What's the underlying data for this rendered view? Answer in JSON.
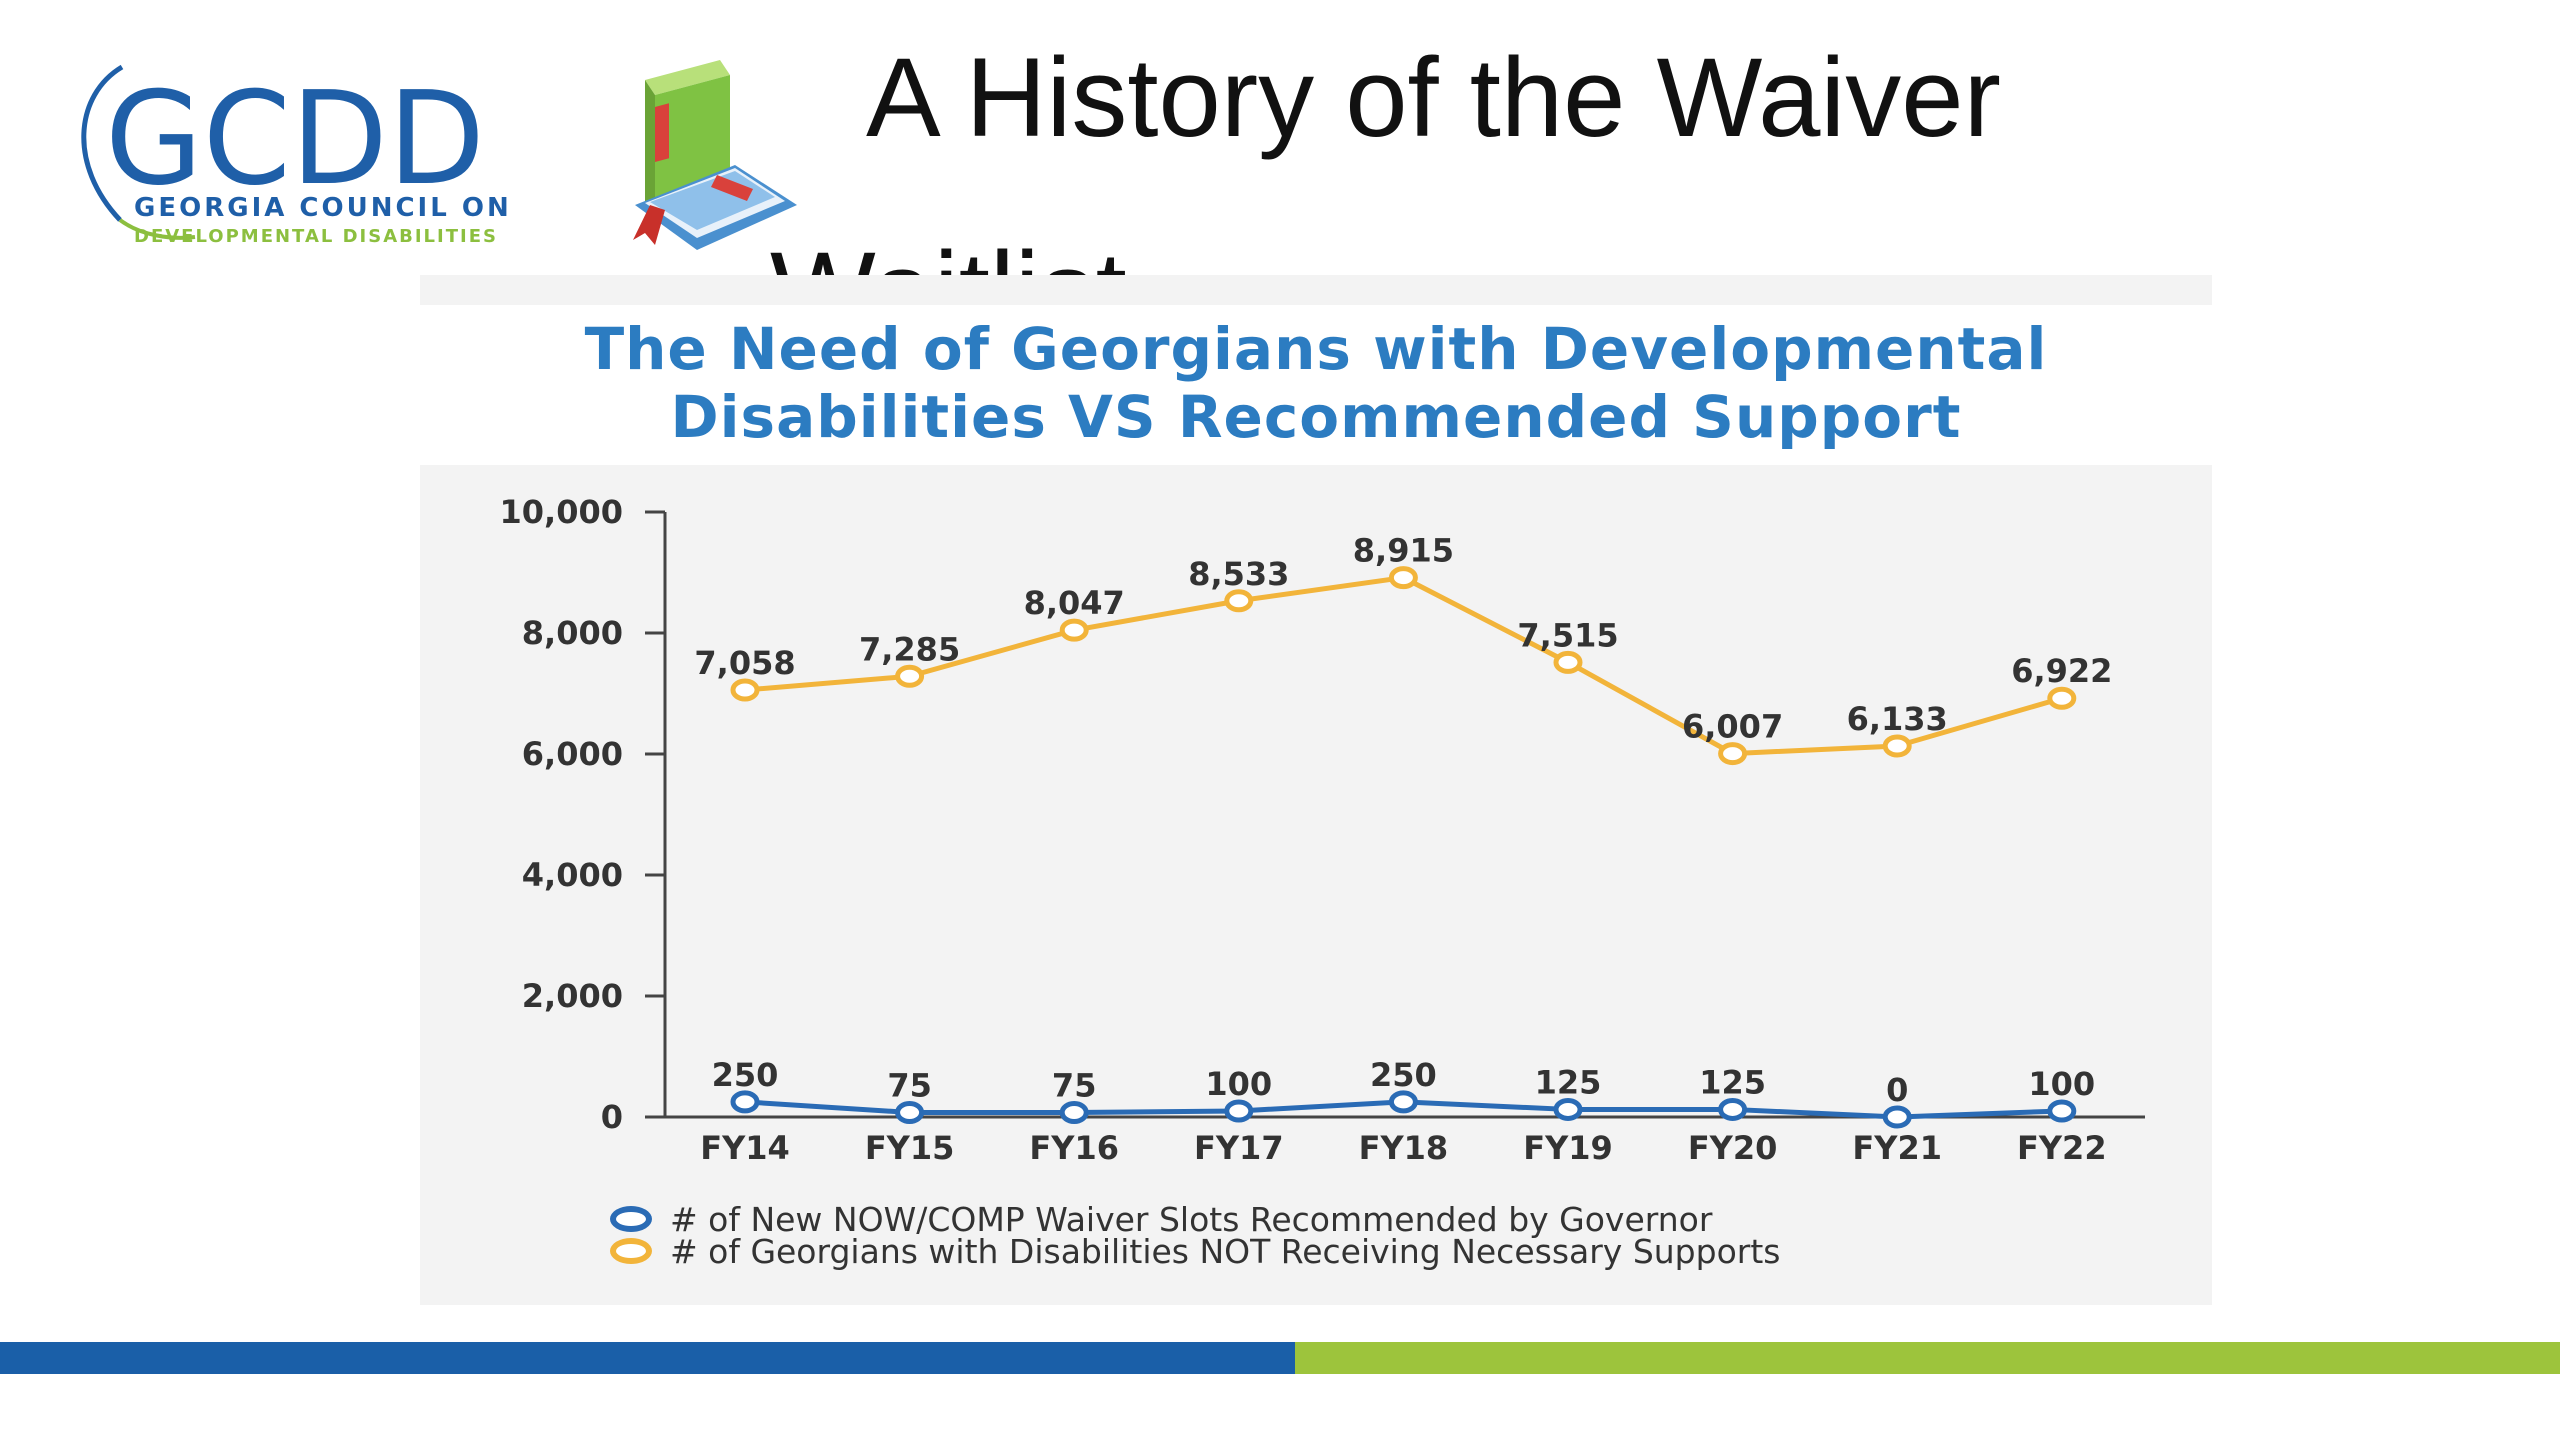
{
  "slide": {
    "title": "A History of the Waiver",
    "title_second_line": "Waitlist"
  },
  "logo": {
    "letters": "GCDD",
    "line1": "GEORGIA COUNCIL ON",
    "line2": "DEVELOPMENTAL DISABILITIES"
  },
  "icons": {
    "book": "book-stack-icon"
  },
  "colors": {
    "series_slots": "#2a6bb5",
    "series_need": "#f2b43a",
    "title_blue": "#2c7cc1",
    "footer_blue": "#1a5fa8",
    "footer_green": "#9dc43c"
  },
  "chart_data": {
    "type": "line",
    "title_lines": [
      "The Need of Georgians with Developmental",
      "Disabilities VS Recommended Support"
    ],
    "categories": [
      "FY14",
      "FY15",
      "FY16",
      "FY17",
      "FY18",
      "FY19",
      "FY20",
      "FY21",
      "FY22"
    ],
    "ylim": [
      0,
      10000
    ],
    "yticks": [
      0,
      2000,
      4000,
      6000,
      8000,
      10000
    ],
    "ytick_labels": [
      "0",
      "2,000",
      "4,000",
      "6,000",
      "8,000",
      "10,000"
    ],
    "legend_position": "bottom-left",
    "grid": false,
    "series": [
      {
        "name": "# of New NOW/COMP Waiver Slots Recommended by Governor",
        "values": [
          250,
          75,
          75,
          100,
          250,
          125,
          125,
          0,
          100
        ],
        "labels": [
          "250",
          "75",
          "75",
          "100",
          "250",
          "125",
          "125",
          "0",
          "100"
        ]
      },
      {
        "name": "# of Georgians with Disabilities NOT Receiving Necessary Supports",
        "values": [
          7058,
          7285,
          8047,
          8533,
          8915,
          7515,
          6007,
          6133,
          6922
        ],
        "labels": [
          "7,058",
          "7,285",
          "8,047",
          "8,533",
          "8,915",
          "7,515",
          "6,007",
          "6,133",
          "6,922"
        ]
      }
    ]
  }
}
